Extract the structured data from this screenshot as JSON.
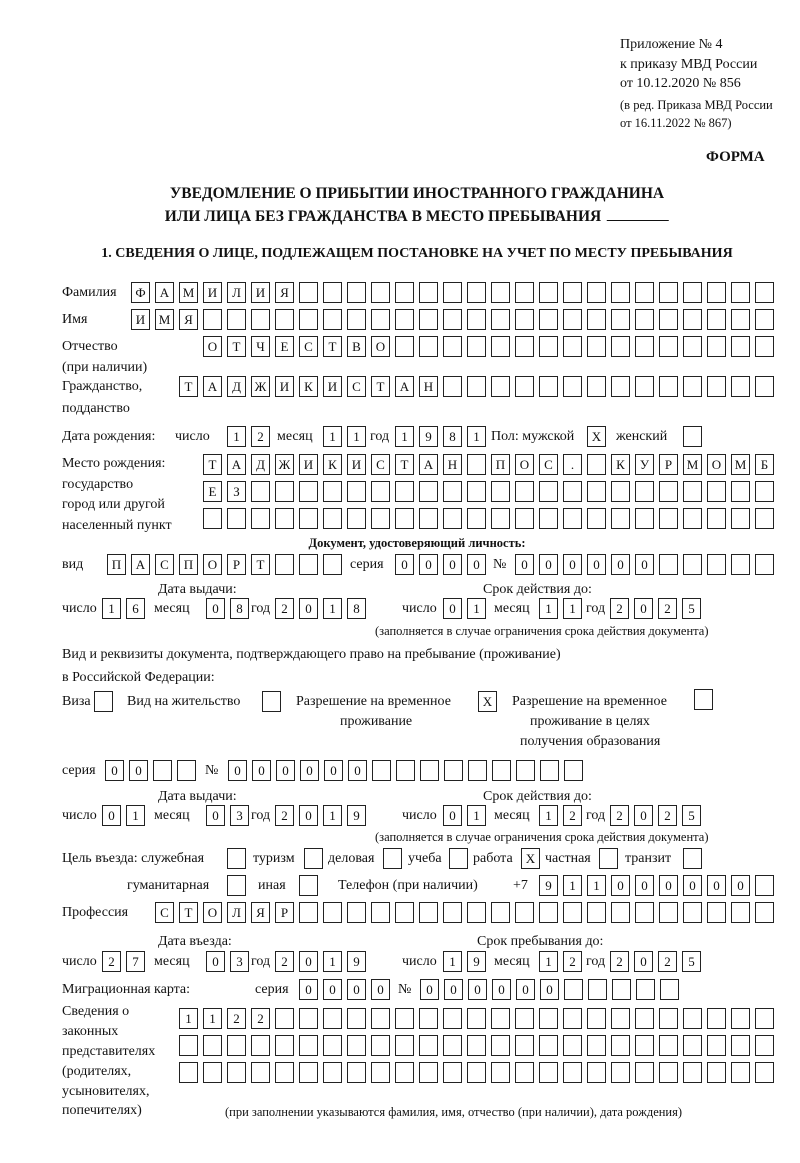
{
  "header": {
    "line1": "Приложение № 4",
    "line2": "к приказу МВД России",
    "line3": "от 10.12.2020 № 856",
    "line4": "(в ред. Приказа МВД России",
    "line5": "от 16.11.2022 № 867)"
  },
  "form_label": "ФОРМА",
  "title": {
    "line1": "УВЕДОМЛЕНИЕ О ПРИБЫТИИ ИНОСТРАННОГО ГРАЖДАНИНА",
    "line2": "ИЛИ ЛИЦА БЕЗ ГРАЖДАНСТВА В МЕСТО ПРЕБЫВАНИЯ"
  },
  "section1_title": "1. СВЕДЕНИЯ О ЛИЦЕ, ПОДЛЕЖАЩЕМ ПОСТАНОВКЕ НА УЧЕТ ПО МЕСТУ ПРЕБЫВАНИЯ",
  "person": {
    "surname": {
      "label": "Фамилия",
      "value": "ФАМИЛИЯ"
    },
    "name": {
      "label": "Имя",
      "value": "ИМЯ"
    },
    "patronymic": {
      "label1": "Отчество",
      "label2": "(при наличии)",
      "value": "ОТЧЕСТВО"
    },
    "citizenship": {
      "label1": "Гражданство,",
      "label2": "подданство",
      "value": "ТАДЖИКИСТАН"
    },
    "birth_date": {
      "label": "Дата рождения:",
      "day_label": "число",
      "month_label": "месяц",
      "year_label": "год",
      "day": "12",
      "month": "11",
      "year": "1981"
    },
    "sex": {
      "label_male": "Пол: мужской",
      "label_female": "женский",
      "male": "X",
      "female": ""
    },
    "birth_place": {
      "label1": "Место рождения:",
      "label2": "государство",
      "label3": "город или другой",
      "label4": "населенный пункт",
      "row1": "ТАДЖИКИСТАН ПОС. КУРМОМБ",
      "row2": "ЕЗ",
      "row3": ""
    }
  },
  "id_document": {
    "heading": "Документ, удостоверяющий личность:",
    "type_label": "вид",
    "type": "ПАСПОРТ",
    "series_label": "серия",
    "series": "0000",
    "number_label": "№",
    "number": "000000",
    "issue_label": "Дата выдачи:",
    "valid_label": "Срок действия до:",
    "day_label": "число",
    "month_label": "месяц",
    "year_label": "год",
    "issue_day": "16",
    "issue_month": "08",
    "issue_year": "2018",
    "valid_day": "01",
    "valid_month": "11",
    "valid_year": "2025",
    "note": "(заполняется в случае ограничения срока действия документа)"
  },
  "stay_document": {
    "heading1": "Вид и реквизиты документа, подтверждающего право на пребывание (проживание)",
    "heading2": "в Российской Федерации:",
    "visa_label": "Виза",
    "visa": "",
    "residence_label": "Вид на жительство",
    "residence": "",
    "temp_label1": "Разрешение на временное",
    "temp_label2": "проживание",
    "temp": "X",
    "edu_label1": "Разрешение на временное",
    "edu_label2": "проживание в целях",
    "edu_label3": "получения образования",
    "edu": "",
    "series_label": "серия",
    "series": "00",
    "number_label": "№",
    "number": "000000",
    "issue_label": "Дата выдачи:",
    "valid_label": "Срок действия до:",
    "day_label": "число",
    "month_label": "месяц",
    "year_label": "год",
    "issue_day": "01",
    "issue_month": "03",
    "issue_year": "2019",
    "valid_day": "01",
    "valid_month": "12",
    "valid_year": "2025",
    "note": "(заполняется в случае ограничения срока действия документа)"
  },
  "purpose": {
    "label": "Цель въезда: служебная",
    "official": "",
    "tourism_label": "туризм",
    "tourism": "",
    "business_label": "деловая",
    "business": "",
    "study_label": "учеба",
    "study": "",
    "work_label": "работа",
    "work": "X",
    "private_label": "частная",
    "private": "",
    "transit_label": "транзит",
    "transit": "",
    "humanitarian_label": "гуманитарная",
    "humanitarian": "",
    "other_label": "иная",
    "other": ""
  },
  "phone": {
    "label": "Телефон (при наличии)",
    "prefix": "+7",
    "value": "911000000"
  },
  "profession": {
    "label": "Профессия",
    "value": "СТОЛЯР"
  },
  "entry": {
    "entry_label": "Дата въезда:",
    "stay_label": "Срок пребывания до:",
    "day_label": "число",
    "month_label": "месяц",
    "year_label": "год",
    "entry_day": "27",
    "entry_month": "03",
    "entry_year": "2019",
    "stay_day": "19",
    "stay_month": "12",
    "stay_year": "2025"
  },
  "migration_card": {
    "label": "Миграционная карта:",
    "series_label": "серия",
    "series": "0000",
    "number_label": "№",
    "number": "000000"
  },
  "representatives": {
    "label1": "Сведения о",
    "label2": "законных",
    "label3": "представителях",
    "label4": "(родителях,",
    "label5": "усыновителях,",
    "label6": "попечителях)",
    "row1": "1122",
    "row2": "",
    "row3": "",
    "note": "(при заполнении указываются фамилия, имя, отчество (при наличии), дата рождения)"
  }
}
